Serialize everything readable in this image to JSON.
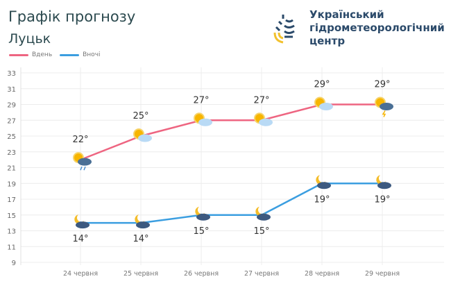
{
  "header": {
    "title": "Графік прогнозу",
    "city": "Луцьк"
  },
  "organization": {
    "line1": "Український",
    "line2": "гідрометеорологічний",
    "line3": "центр"
  },
  "chart_data": {
    "type": "line",
    "categories": [
      "24 червня",
      "25 червня",
      "26 червня",
      "27 червня",
      "28 червня",
      "29 червня"
    ],
    "series": [
      {
        "name": "Вдень",
        "color": "#ee6581",
        "values": [
          22,
          25,
          27,
          27,
          29,
          29
        ],
        "labels": [
          "22°",
          "25°",
          "27°",
          "27°",
          "29°",
          "29°"
        ],
        "icons": [
          "sun-cloud-rain",
          "sun-cloud",
          "sun-cloud",
          "sun-cloud",
          "sun-cloud",
          "sun-cloud-thunderstorm"
        ]
      },
      {
        "name": "Вночі",
        "color": "#3b9ee0",
        "values": [
          14,
          14,
          15,
          15,
          19,
          19
        ],
        "labels": [
          "14°",
          "14°",
          "15°",
          "15°",
          "19°",
          "19°"
        ],
        "icons": [
          "moon-cloud",
          "moon-cloud",
          "moon-cloud",
          "moon-cloud",
          "moon-cloud",
          "moon-cloud"
        ]
      }
    ],
    "yticks": [
      33,
      31,
      29,
      27,
      25,
      23,
      21,
      19,
      17,
      15,
      13,
      11,
      9
    ],
    "ylim": [
      9,
      33
    ],
    "grid": true,
    "legend": "top-left"
  }
}
